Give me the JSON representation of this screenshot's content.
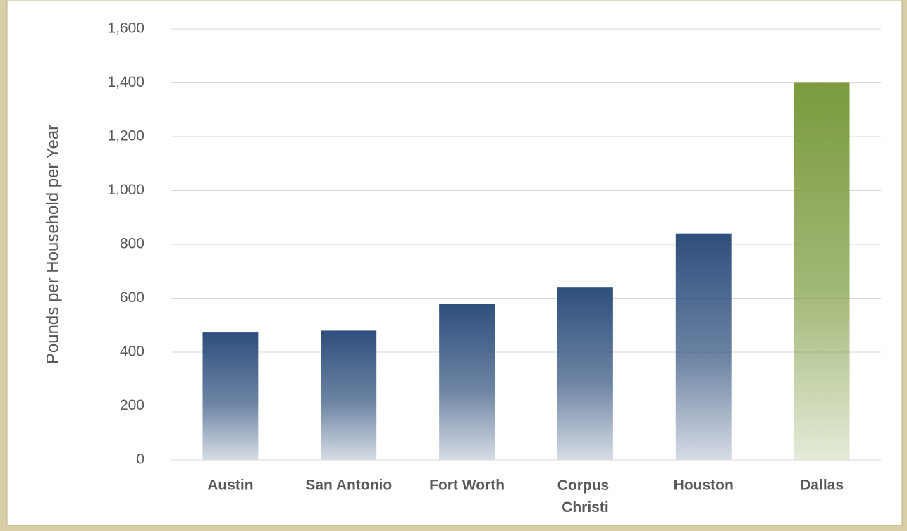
{
  "chart_data": {
    "type": "bar",
    "y_axis_label": "Pounds per Household per Year",
    "categories": [
      "Austin",
      "San Antonio",
      "Fort Worth",
      "Corpus Christi",
      "Houston",
      "Dallas"
    ],
    "values": [
      473,
      480,
      580,
      640,
      840,
      1400
    ],
    "colors": [
      "#2e4f7c",
      "#2e4f7c",
      "#2e4f7c",
      "#2e4f7c",
      "#2e4f7c",
      "#7a9a3c"
    ],
    "ylim": [
      0,
      1600
    ],
    "yticks": [
      0,
      200,
      400,
      600,
      800,
      {
        "value": 1000,
        "label": "1,000"
      },
      {
        "value": 1200,
        "label": "1,200"
      },
      {
        "value": 1400,
        "label": "1,400"
      },
      {
        "value": 1600,
        "label": "1,600"
      }
    ],
    "grid": true
  }
}
